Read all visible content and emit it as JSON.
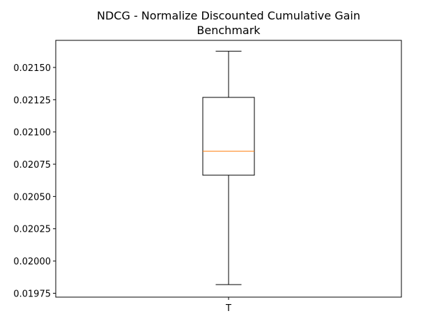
{
  "chart_data": {
    "type": "box",
    "title_line1": "NDCG - Normalize Discounted Cumulative Gain",
    "title_line2": "Benchmark",
    "xlabel": "",
    "ylabel": "",
    "categories": [
      "T"
    ],
    "ylim": [
      0.01972,
      0.02171
    ],
    "yticks": [
      0.01975,
      0.02,
      0.02025,
      0.0205,
      0.02075,
      0.021,
      0.02125,
      0.0215
    ],
    "ytick_labels": [
      "0.01975",
      "0.02000",
      "0.02025",
      "0.02050",
      "0.02075",
      "0.02100",
      "0.02125",
      "0.02150"
    ],
    "boxes": [
      {
        "category": "T",
        "whisker_low": 0.019817,
        "q1": 0.020665,
        "median": 0.020851,
        "q3": 0.021268,
        "whisker_high": 0.021626
      }
    ],
    "grid": false,
    "legend": "none",
    "colors": {
      "box": "#000000",
      "median": "#ff7f0e"
    }
  }
}
